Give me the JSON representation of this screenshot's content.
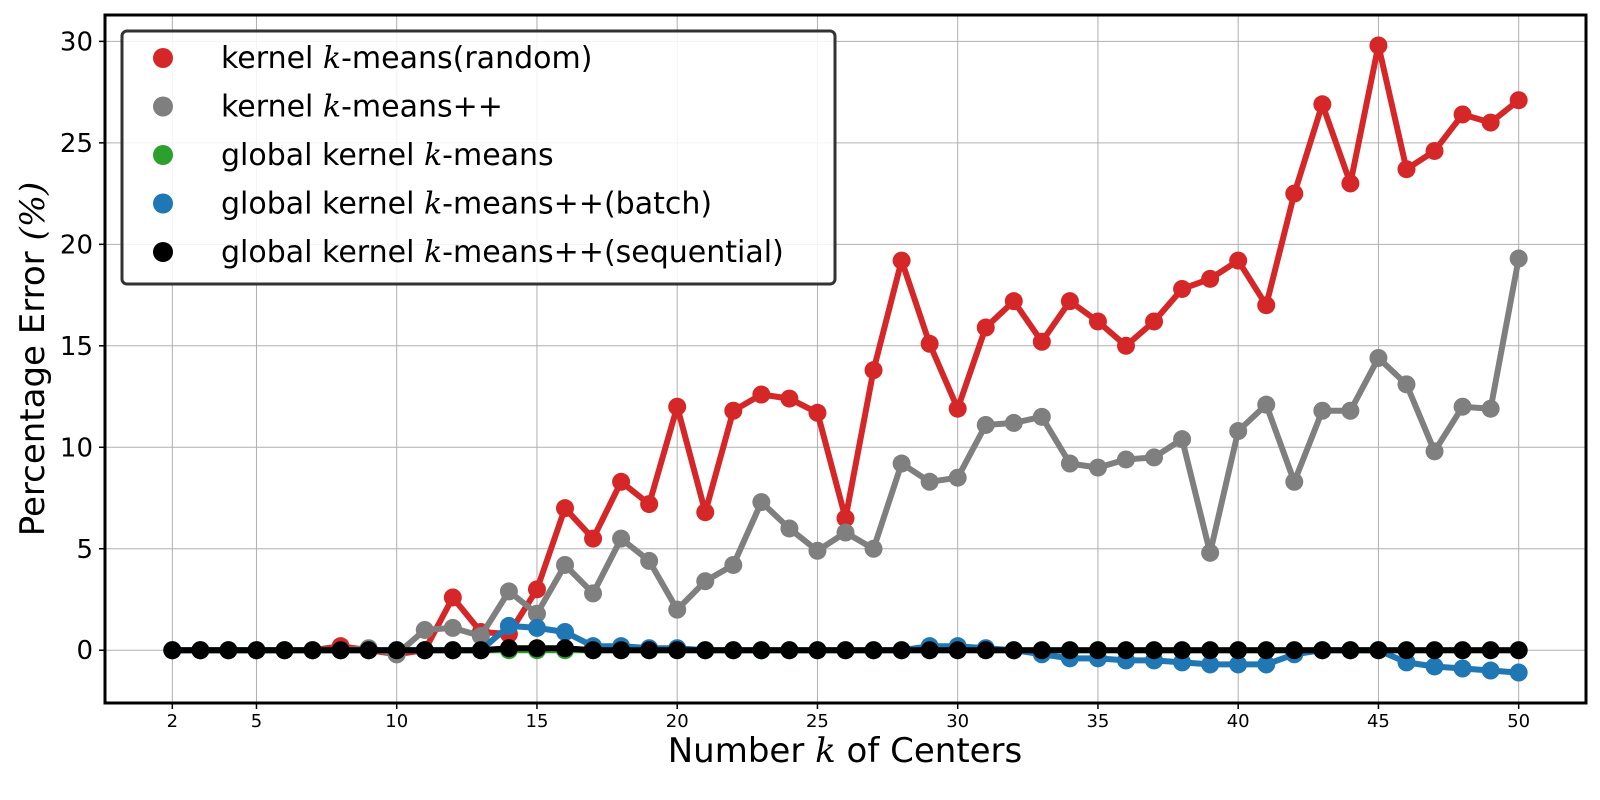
{
  "chart_data": {
    "type": "line",
    "title": "",
    "xlabel": {
      "pre": "Number ",
      "var": "k",
      "post": " of Centers"
    },
    "ylabel": {
      "pre": "Percentage Error ",
      "var": "(%)"
    },
    "xlim": [
      -0.4,
      52.4
    ],
    "ylim": [
      -2.6,
      31.3
    ],
    "xticks": [
      2,
      5,
      10,
      15,
      20,
      25,
      30,
      35,
      40,
      45,
      50
    ],
    "yticks": [
      0,
      5,
      10,
      15,
      20,
      25,
      30
    ],
    "grid": true,
    "legend_position": "top-left",
    "x": [
      2,
      3,
      4,
      5,
      6,
      7,
      8,
      9,
      10,
      11,
      12,
      13,
      14,
      15,
      16,
      17,
      18,
      19,
      20,
      21,
      22,
      23,
      24,
      25,
      26,
      27,
      28,
      29,
      30,
      31,
      32,
      33,
      34,
      35,
      36,
      37,
      38,
      39,
      40,
      41,
      42,
      43,
      44,
      45,
      46,
      47,
      48,
      49,
      50
    ],
    "series": [
      {
        "label_parts": [
          "kernel ",
          "k",
          "-means(random)"
        ],
        "color": "#d62728",
        "values": [
          0,
          0,
          0,
          0,
          0,
          0,
          0.2,
          0,
          -0.2,
          0,
          2.6,
          0.9,
          0.8,
          3.0,
          7.0,
          5.5,
          8.3,
          7.2,
          12.0,
          6.8,
          11.8,
          12.6,
          12.4,
          11.7,
          6.5,
          13.8,
          19.2,
          15.1,
          11.9,
          15.9,
          17.2,
          15.2,
          17.2,
          16.2,
          15.0,
          16.2,
          17.8,
          18.3,
          19.2,
          17.0,
          22.5,
          26.9,
          23.0,
          29.8,
          23.7,
          24.6,
          26.4,
          26.0,
          27.1
        ]
      },
      {
        "label_parts": [
          "kernel ",
          "k",
          "-means++"
        ],
        "color": "#7f7f7f",
        "values": [
          0,
          0,
          0,
          0,
          0,
          0,
          0,
          0.1,
          -0.2,
          1.0,
          1.1,
          0.7,
          2.9,
          1.8,
          4.2,
          2.8,
          5.5,
          4.4,
          2.0,
          3.4,
          4.2,
          7.3,
          6.0,
          4.9,
          5.8,
          5.0,
          9.2,
          8.3,
          8.5,
          11.1,
          11.2,
          11.5,
          9.2,
          9.0,
          9.4,
          9.5,
          10.4,
          4.8,
          10.8,
          12.1,
          8.3,
          11.8,
          11.8,
          14.4,
          13.1,
          9.8,
          12.0,
          11.9,
          19.3
        ]
      },
      {
        "label_parts": [
          "global kernel ",
          "k",
          "-means"
        ],
        "color": "#2ca02c",
        "values": [
          0,
          0,
          0,
          0,
          0,
          0,
          0,
          0,
          0,
          0,
          0,
          0,
          0,
          0,
          0,
          0,
          0,
          0,
          0,
          0,
          0,
          0,
          0,
          0,
          0,
          0,
          0,
          0,
          0,
          0,
          0,
          0,
          0,
          0,
          0,
          0,
          0,
          0,
          0,
          0,
          0,
          0,
          0,
          0,
          0,
          0,
          0,
          0,
          0
        ]
      },
      {
        "label_parts": [
          "global kernel ",
          "k",
          "-means++(batch)"
        ],
        "color": "#1f77b4",
        "values": [
          0,
          0,
          0,
          0,
          0,
          0,
          0,
          0,
          0,
          0,
          0,
          0,
          1.2,
          1.1,
          0.9,
          0.2,
          0.2,
          0.1,
          0.1,
          0,
          0,
          0,
          0,
          0,
          0,
          0,
          0,
          0.2,
          0.2,
          0.1,
          0,
          -0.2,
          -0.4,
          -0.4,
          -0.5,
          -0.5,
          -0.6,
          -0.7,
          -0.7,
          -0.7,
          -0.2,
          0,
          0,
          0,
          -0.6,
          -0.8,
          -0.9,
          -1.0,
          -1.1
        ]
      },
      {
        "label_parts": [
          "global kernel ",
          "k",
          "-means++(sequential)"
        ],
        "color": "#000000",
        "values": [
          0,
          0,
          0,
          0,
          0,
          0,
          0,
          0,
          0,
          0,
          0,
          0,
          0.1,
          0.1,
          0.1,
          0,
          0,
          0,
          0,
          0,
          0,
          0,
          0,
          0,
          0,
          0,
          0,
          0,
          0,
          0,
          0,
          0,
          0,
          0,
          0,
          0,
          0,
          0,
          0,
          0,
          0,
          0,
          0,
          0,
          0,
          0,
          0,
          0,
          0
        ]
      }
    ]
  }
}
